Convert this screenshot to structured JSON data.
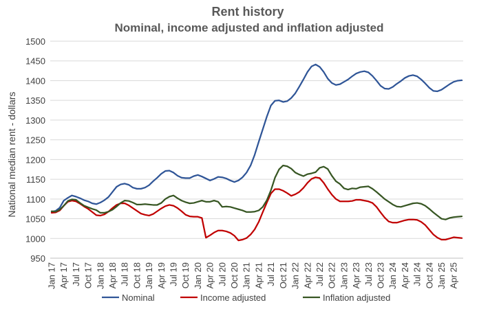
{
  "chart_data": {
    "type": "line",
    "title": "Rent history",
    "subtitle": "Nominal, income adjusted and inflation adjusted",
    "xlabel": "",
    "ylabel": "National median rent - dollars",
    "ylim": [
      950,
      1500
    ],
    "yticks": [
      950,
      1000,
      1050,
      1100,
      1150,
      1200,
      1250,
      1300,
      1350,
      1400,
      1450,
      1500
    ],
    "grid": "horizontal",
    "legend_position": "bottom",
    "x": [
      "Jan 17",
      "Feb 17",
      "Mar 17",
      "Apr 17",
      "May 17",
      "Jun 17",
      "Jul 17",
      "Aug 17",
      "Sep 17",
      "Oct 17",
      "Nov 17",
      "Dec 17",
      "Jan 18",
      "Feb 18",
      "Mar 18",
      "Apr 18",
      "May 18",
      "Jun 18",
      "Jul 18",
      "Aug 18",
      "Sep 18",
      "Oct 18",
      "Nov 18",
      "Dec 18",
      "Jan 19",
      "Feb 19",
      "Mar 19",
      "Apr 19",
      "May 19",
      "Jun 19",
      "Jul 19",
      "Aug 19",
      "Sep 19",
      "Oct 19",
      "Nov 19",
      "Dec 19",
      "Jan 20",
      "Feb 20",
      "Mar 20",
      "Apr 20",
      "May 20",
      "Jun 20",
      "Jul 20",
      "Aug 20",
      "Sep 20",
      "Oct 20",
      "Nov 20",
      "Dec 20",
      "Jan 21",
      "Feb 21",
      "Mar 21",
      "Apr 21",
      "May 21",
      "Jun 21",
      "Jul 21",
      "Aug 21",
      "Sep 21",
      "Oct 21",
      "Nov 21",
      "Dec 21",
      "Jan 22",
      "Feb 22",
      "Mar 22",
      "Apr 22",
      "May 22",
      "Jun 22",
      "Jul 22",
      "Aug 22",
      "Sep 22",
      "Oct 22",
      "Nov 22",
      "Dec 22",
      "Jan 23",
      "Feb 23",
      "Mar 23",
      "Apr 23",
      "May 23",
      "Jun 23",
      "Jul 23",
      "Aug 23",
      "Sep 23",
      "Oct 23",
      "Nov 23",
      "Dec 23",
      "Jan 24",
      "Feb 24",
      "Mar 24",
      "Apr 24",
      "May 24",
      "Jun 24",
      "Jul 24",
      "Aug 24",
      "Sep 24",
      "Oct 24",
      "Nov 24",
      "Dec 24",
      "Jan 25",
      "Feb 25",
      "Mar 25",
      "Apr 25",
      "May 25",
      "Jun 25"
    ],
    "tick_labels": [
      "Jan 17",
      "Apr 17",
      "Jul 17",
      "Oct 17",
      "Jan 18",
      "Apr 18",
      "Jul 18",
      "Oct 18",
      "Jan 19",
      "Apr 19",
      "Jul 19",
      "Oct 19",
      "Jan 20",
      "Apr 20",
      "Jul 20",
      "Oct 20",
      "Jan 21",
      "Apr 21",
      "Jul 21",
      "Oct 21",
      "Jan 22",
      "Apr 22",
      "Jul 22",
      "Oct 22",
      "Jan 23",
      "Apr 23",
      "Jul 23",
      "Oct 23",
      "Jan 24",
      "Apr 24",
      "Jul 24",
      "Oct 24",
      "Jan 25",
      "Apr 25"
    ],
    "series": [
      {
        "name": "Nominal",
        "color": "#2f5597",
        "values": [
          1068,
          1070,
          1078,
          1096,
          1103,
          1109,
          1106,
          1102,
          1097,
          1094,
          1089,
          1087,
          1091,
          1097,
          1105,
          1118,
          1131,
          1137,
          1139,
          1136,
          1129,
          1126,
          1126,
          1129,
          1135,
          1145,
          1154,
          1164,
          1171,
          1172,
          1167,
          1159,
          1154,
          1153,
          1153,
          1158,
          1161,
          1157,
          1152,
          1147,
          1151,
          1156,
          1155,
          1152,
          1147,
          1143,
          1147,
          1155,
          1167,
          1185,
          1212,
          1245,
          1277,
          1309,
          1337,
          1349,
          1350,
          1346,
          1348,
          1356,
          1368,
          1385,
          1403,
          1422,
          1436,
          1441,
          1435,
          1422,
          1405,
          1394,
          1389,
          1391,
          1397,
          1403,
          1411,
          1418,
          1422,
          1424,
          1421,
          1412,
          1400,
          1387,
          1380,
          1379,
          1384,
          1392,
          1399,
          1407,
          1412,
          1414,
          1411,
          1403,
          1393,
          1382,
          1374,
          1373,
          1377,
          1384,
          1391,
          1397,
          1400,
          1401
        ]
      },
      {
        "name": "Income adjusted",
        "color": "#c00000",
        "values": [
          1065,
          1066,
          1071,
          1083,
          1093,
          1096,
          1094,
          1088,
          1081,
          1075,
          1067,
          1059,
          1058,
          1061,
          1068,
          1077,
          1085,
          1089,
          1089,
          1084,
          1077,
          1070,
          1063,
          1060,
          1058,
          1062,
          1069,
          1076,
          1082,
          1085,
          1083,
          1077,
          1069,
          1060,
          1056,
          1055,
          1055,
          1052,
          1002,
          1008,
          1015,
          1020,
          1020,
          1018,
          1014,
          1007,
          995,
          997,
          1001,
          1010,
          1023,
          1042,
          1067,
          1091,
          1114,
          1125,
          1125,
          1121,
          1115,
          1108,
          1112,
          1118,
          1128,
          1141,
          1151,
          1155,
          1153,
          1141,
          1125,
          1111,
          1100,
          1094,
          1094,
          1094,
          1095,
          1098,
          1098,
          1096,
          1094,
          1090,
          1080,
          1066,
          1053,
          1043,
          1040,
          1040,
          1043,
          1046,
          1048,
          1048,
          1047,
          1042,
          1034,
          1022,
          1010,
          1002,
          997,
          997,
          1000,
          1003,
          1002,
          1001
        ]
      },
      {
        "name": "Inflation adjusted",
        "color": "#375623",
        "values": [
          1069,
          1068,
          1073,
          1083,
          1095,
          1099,
          1098,
          1090,
          1083,
          1079,
          1075,
          1072,
          1065,
          1065,
          1068,
          1073,
          1081,
          1090,
          1096,
          1095,
          1091,
          1086,
          1086,
          1087,
          1086,
          1085,
          1085,
          1090,
          1100,
          1106,
          1109,
          1102,
          1096,
          1092,
          1089,
          1090,
          1093,
          1096,
          1093,
          1093,
          1096,
          1093,
          1080,
          1081,
          1080,
          1077,
          1074,
          1071,
          1067,
          1067,
          1068,
          1071,
          1080,
          1097,
          1122,
          1154,
          1175,
          1185,
          1183,
          1177,
          1167,
          1162,
          1158,
          1163,
          1165,
          1168,
          1179,
          1182,
          1176,
          1159,
          1145,
          1138,
          1127,
          1124,
          1127,
          1126,
          1130,
          1131,
          1132,
          1126,
          1118,
          1109,
          1100,
          1093,
          1086,
          1081,
          1080,
          1083,
          1086,
          1089,
          1090,
          1088,
          1083,
          1075,
          1066,
          1058,
          1050,
          1048,
          1052,
          1054,
          1055,
          1056
        ]
      }
    ]
  }
}
